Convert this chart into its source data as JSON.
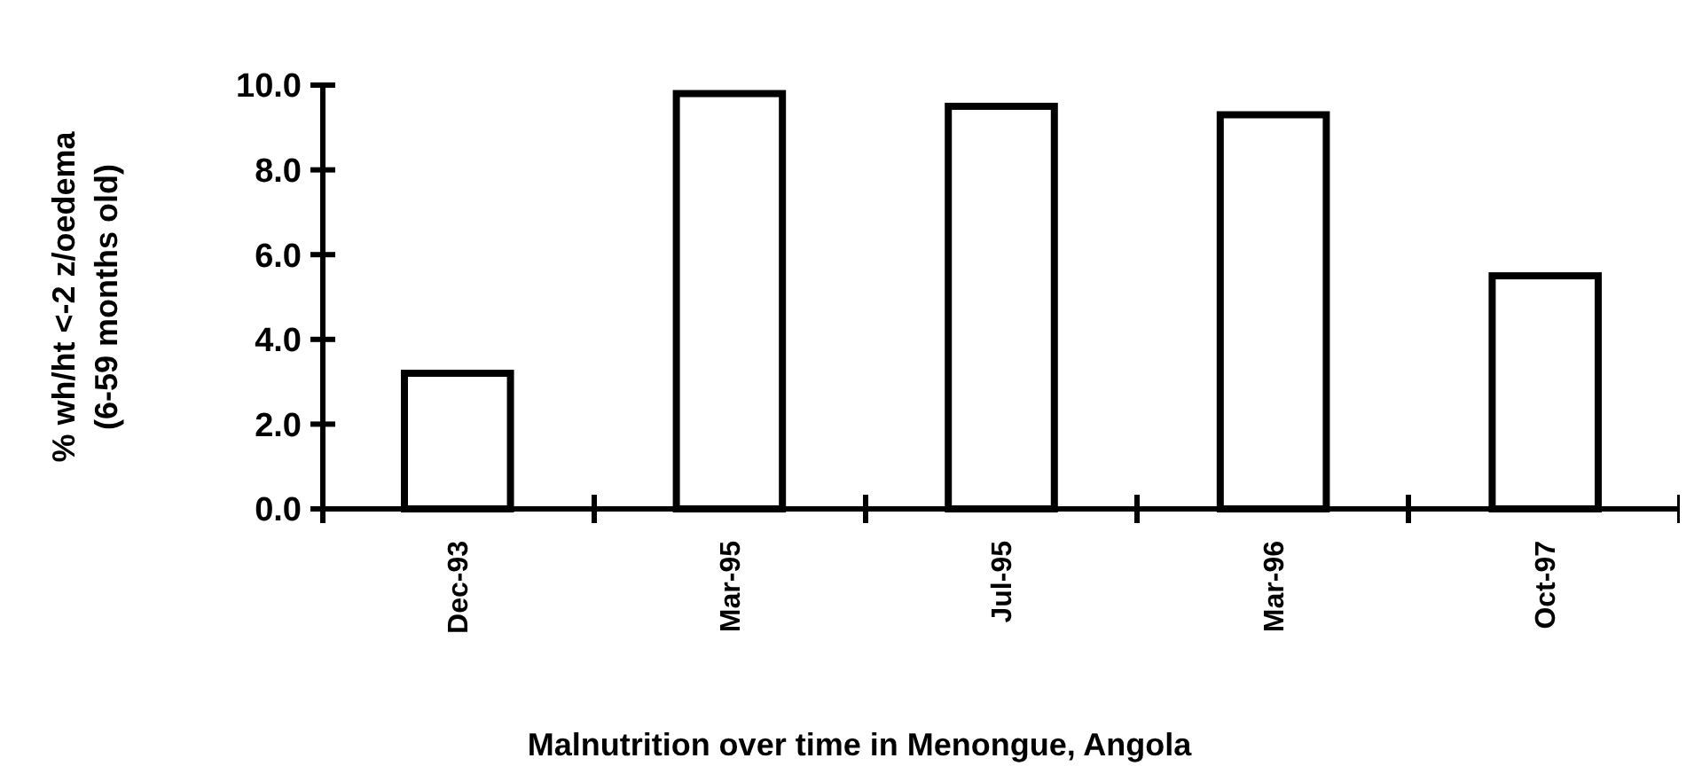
{
  "chart_data": {
    "type": "bar",
    "title": "Malnutrition over time in Menongue, Angola",
    "ylabel": "% wh/ht <-2 z/oedema (6-59 months old)",
    "categories": [
      "Dec-93",
      "Mar-95",
      "Jul-95",
      "Mar-96",
      "Oct-97"
    ],
    "values": [
      3.2,
      9.8,
      9.5,
      9.3,
      5.5
    ],
    "color": "#ffffff",
    "ylim": [
      0,
      10
    ],
    "yticks": [
      {
        "value": 0,
        "label": "0.0"
      },
      {
        "value": 2,
        "label": "2.0"
      },
      {
        "value": 4,
        "label": "4.0"
      },
      {
        "value": 6,
        "label": "6.0"
      },
      {
        "value": 8,
        "label": "8.0"
      },
      {
        "value": 10,
        "label": "10.0"
      }
    ],
    "grid": false
  }
}
